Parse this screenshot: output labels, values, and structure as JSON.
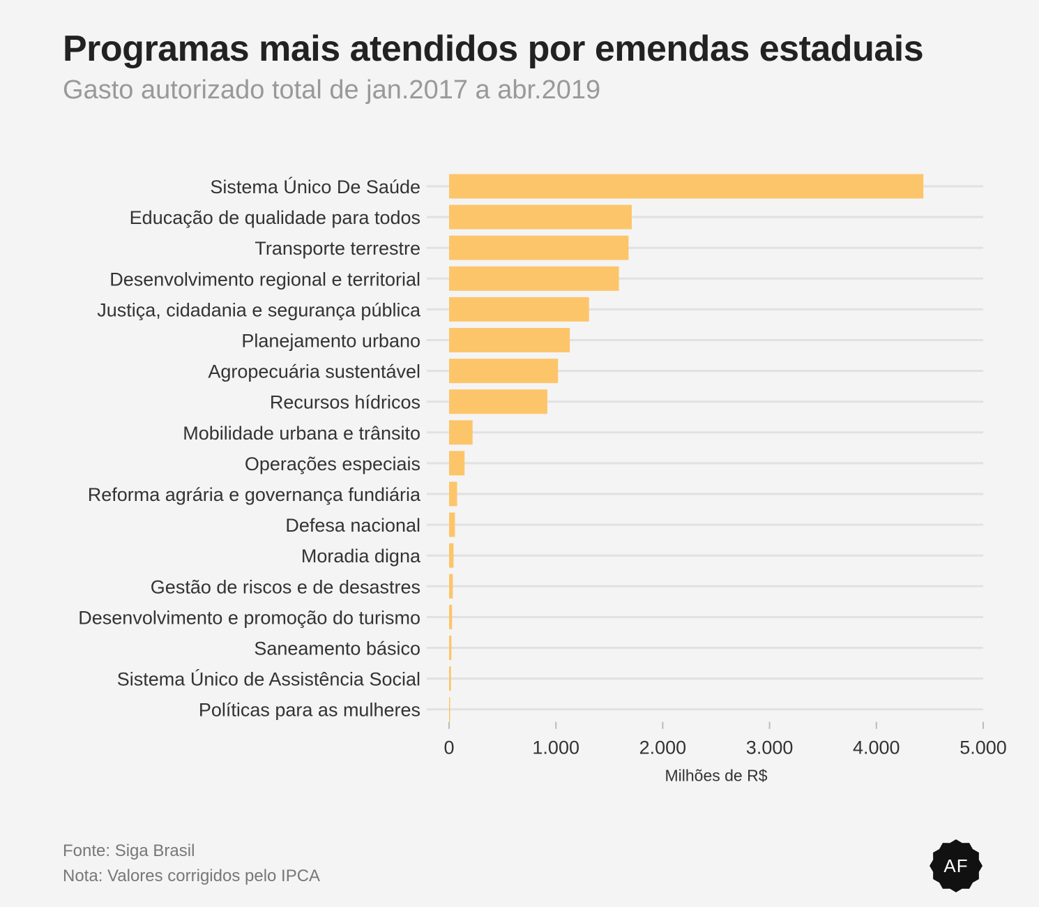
{
  "header": {
    "title": "Programas mais atendidos por emendas estaduais",
    "subtitle": "Gasto autorizado total de jan.2017 a abr.2019"
  },
  "footer": {
    "source": "Fonte: Siga Brasil",
    "note": "Nota: Valores corrigidos pelo IPCA"
  },
  "logo": {
    "text": "AF"
  },
  "colors": {
    "bar": "#fdc56a",
    "gridline": "#e1e1e1",
    "logo": "#111111"
  },
  "chart_data": {
    "type": "bar",
    "orientation": "horizontal",
    "categories": [
      "Sistema Único De Saúde",
      "Educação de qualidade para todos",
      "Transporte terrestre",
      "Desenvolvimento regional e territorial",
      "Justiça, cidadania e segurança pública",
      "Planejamento urbano",
      "Agropecuária sustentável",
      "Recursos hídricos",
      "Mobilidade urbana e trânsito",
      "Operações especiais",
      "Reforma agrária e governança fundiária",
      "Defesa nacional",
      "Moradia digna",
      "Gestão de riscos e de desastres",
      "Desenvolvimento e promoção do turismo",
      "Saneamento básico",
      "Sistema Único de Assistência Social",
      "Políticas para as mulheres"
    ],
    "values": [
      4440,
      1710,
      1680,
      1590,
      1310,
      1130,
      1020,
      920,
      220,
      145,
      75,
      55,
      42,
      35,
      28,
      22,
      18,
      5
    ],
    "xlabel": "Milhões de R$",
    "ylabel": "",
    "xlim": [
      0,
      5000
    ],
    "xticks": [
      0,
      1000,
      2000,
      3000,
      4000,
      5000
    ],
    "xtick_labels": [
      "0",
      "1.000",
      "2.000",
      "3.000",
      "4.000",
      "5.000"
    ],
    "grid": true
  }
}
